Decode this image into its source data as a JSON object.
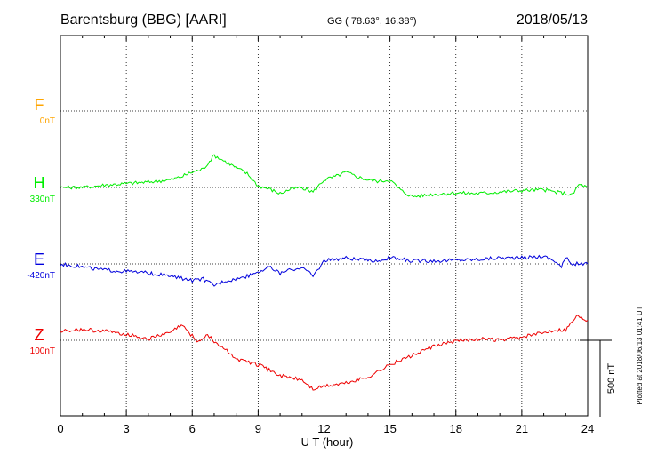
{
  "header": {
    "station": "Barentsburg (BBG)  [AARI]",
    "coords": "GG ( 78.63°,  16.38°)",
    "date": "2018/05/13"
  },
  "footer": {
    "plotted": "Plotted at 2018/06/13 01:41  UT"
  },
  "chart_data": {
    "type": "line",
    "xlabel": "U T (hour)",
    "xlim": [
      0,
      24
    ],
    "xticks": [
      "0",
      "3",
      "6",
      "9",
      "12",
      "15",
      "18",
      "21",
      "24"
    ],
    "grid": true,
    "scale_bar": {
      "label": "500 nT",
      "value_nT": 500
    },
    "series": [
      {
        "name": "F",
        "baseline": "0nT",
        "color": "#ffa500",
        "no_data": true,
        "x": [],
        "y": []
      },
      {
        "name": "H",
        "baseline": "330nT",
        "color": "#00ee00",
        "x": [
          0,
          1,
          2,
          3,
          4,
          5,
          5.5,
          6,
          6.5,
          7,
          7.5,
          8,
          8.5,
          9,
          9.5,
          10,
          10.5,
          11,
          11.5,
          12,
          12.5,
          13,
          13.5,
          14,
          14.5,
          15,
          15.5,
          16,
          17,
          18,
          19,
          20,
          21,
          22,
          22.5,
          23,
          23.3,
          23.6,
          24
        ],
        "y": [
          330,
          330,
          345,
          355,
          365,
          380,
          400,
          430,
          450,
          540,
          500,
          460,
          420,
          340,
          320,
          290,
          320,
          330,
          300,
          380,
          400,
          430,
          400,
          380,
          370,
          380,
          310,
          270,
          285,
          295,
          290,
          300,
          310,
          315,
          300,
          290,
          280,
          350,
          330
        ]
      },
      {
        "name": "E",
        "baseline": "-420nT",
        "color": "#0000dd",
        "x": [
          0,
          1,
          2,
          3,
          4,
          5,
          6,
          6.5,
          7,
          7.5,
          8,
          8.5,
          9,
          9.5,
          10,
          10.5,
          11,
          11.5,
          12,
          12.5,
          13,
          13.5,
          14,
          14.5,
          15,
          15.5,
          16,
          17,
          18,
          19,
          20,
          21,
          22,
          22.5,
          22.8,
          23,
          23.3,
          24
        ],
        "y": [
          -420,
          -440,
          -460,
          -470,
          -480,
          -500,
          -530,
          -520,
          -560,
          -530,
          -520,
          -500,
          -470,
          -440,
          -480,
          -460,
          -440,
          -500,
          -400,
          -390,
          -380,
          -390,
          -400,
          -400,
          -380,
          -390,
          -400,
          -400,
          -395,
          -390,
          -380,
          -380,
          -370,
          -400,
          -440,
          -380,
          -420,
          -420
        ]
      },
      {
        "name": "Z",
        "baseline": "100nT",
        "color": "#ee0000",
        "x": [
          0,
          1,
          2,
          3,
          4,
          4.5,
          5,
          5.5,
          6,
          6.3,
          6.7,
          7,
          7.5,
          8,
          9,
          10,
          11,
          11.5,
          12,
          13,
          14,
          15,
          16,
          17,
          18,
          19,
          20,
          21,
          22,
          22.5,
          23,
          23.5,
          24
        ],
        "y": [
          160,
          170,
          160,
          140,
          110,
          130,
          150,
          200,
          130,
          90,
          140,
          90,
          40,
          -20,
          -60,
          -130,
          -160,
          -220,
          -200,
          -180,
          -140,
          -60,
          0,
          60,
          95,
          110,
          100,
          120,
          150,
          170,
          170,
          260,
          230
        ]
      }
    ]
  }
}
